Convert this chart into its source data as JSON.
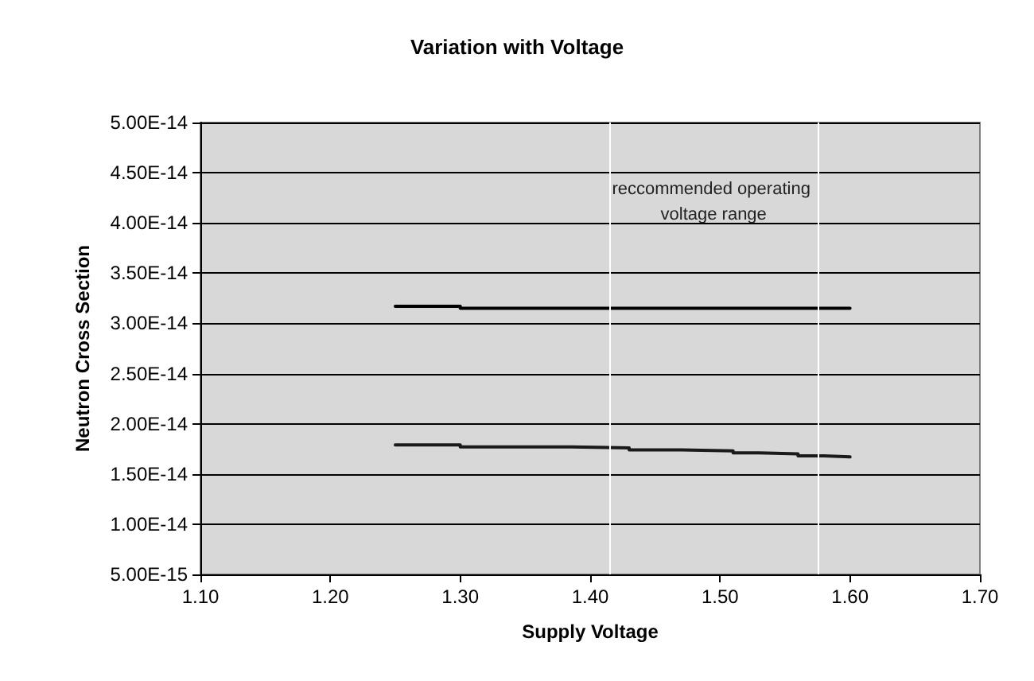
{
  "chart_data": {
    "type": "step",
    "title": "Variation with Voltage",
    "xlabel": "Supply Voltage",
    "ylabel": "Neutron Cross Section",
    "series": [
      {
        "color": "#000000",
        "x": [
          1.25,
          1.3,
          1.6
        ],
        "values": [
          3.17e-14,
          3.15e-14,
          3.15e-14
        ]
      },
      {
        "color": "#1a1a1a",
        "x": [
          1.25,
          1.3,
          1.385,
          1.43,
          1.47,
          1.51,
          1.53,
          1.56,
          1.58,
          1.6
        ],
        "values": [
          1.79e-14,
          1.77e-14,
          1.76e-14,
          1.74e-14,
          1.73e-14,
          1.71e-14,
          1.7e-14,
          1.68e-14,
          1.67e-14,
          1.67e-14
        ]
      }
    ],
    "xlim": [
      1.1,
      1.7
    ],
    "xticks": [
      {
        "value": 1.1,
        "label": "1.10"
      },
      {
        "value": 1.2,
        "label": "1.20"
      },
      {
        "value": 1.3,
        "label": "1.30"
      },
      {
        "value": 1.4,
        "label": "1.40"
      },
      {
        "value": 1.5,
        "label": "1.50"
      },
      {
        "value": 1.6,
        "label": "1.60"
      },
      {
        "value": 1.7,
        "label": "1.70"
      }
    ],
    "ylim": [
      5e-15,
      5e-14
    ],
    "yticks": [
      {
        "value": 5e-15,
        "label": "5.00E-15"
      },
      {
        "value": 1e-14,
        "label": "1.00E-14"
      },
      {
        "value": 1.5e-14,
        "label": "1.50E-14"
      },
      {
        "value": 2e-14,
        "label": "2.00E-14"
      },
      {
        "value": 2.5e-14,
        "label": "2.50E-14"
      },
      {
        "value": 3e-14,
        "label": "3.00E-14"
      },
      {
        "value": 3.5e-14,
        "label": "3.50E-14"
      },
      {
        "value": 4e-14,
        "label": "4.00E-14"
      },
      {
        "value": 4.5e-14,
        "label": "4.50E-14"
      },
      {
        "value": 5e-14,
        "label": "5.00E-14"
      }
    ],
    "ref_lines": [
      {
        "axis": "x",
        "value": 1.415,
        "color": "#ffffff"
      },
      {
        "axis": "x",
        "value": 1.575,
        "color": "#ffffff"
      }
    ],
    "annotations": [
      "reccommended operating voltage range"
    ],
    "grid": "y",
    "marker": "none",
    "line_style": "solid"
  }
}
